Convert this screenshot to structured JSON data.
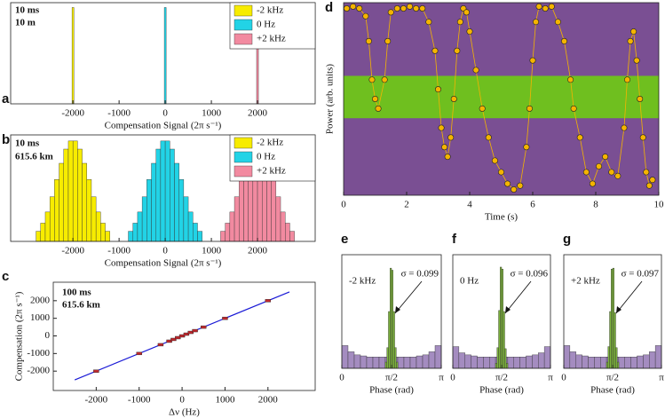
{
  "chart_data": [
    {
      "type": "histogram",
      "panel": "a",
      "annotations": [
        "10 ms",
        "10 m"
      ],
      "xlabel": "Compensation Signal (2π s⁻¹)",
      "xlim": [
        -3350,
        3250
      ],
      "ylim": [
        0,
        1.05
      ],
      "xticks": [
        -2000,
        -1000,
        0,
        1000,
        2000
      ],
      "series": [
        {
          "name": "-2 kHz",
          "color": "#f7ec00",
          "bins": [
            -2020,
            -1980
          ],
          "values": [
            1
          ]
        },
        {
          "name": "0 Hz",
          "color": "#22d3e6",
          "bins": [
            -20,
            20
          ],
          "values": [
            1
          ]
        },
        {
          "name": "+2 kHz",
          "color": "#f28aa0",
          "bins": [
            1980,
            2020
          ],
          "values": [
            1
          ]
        }
      ]
    },
    {
      "type": "histogram",
      "panel": "b",
      "annotations": [
        "10 ms",
        "615.6 km"
      ],
      "xlabel": "Compensation Signal (2π s⁻¹)",
      "xlim": [
        -3350,
        3250
      ],
      "ylim": [
        0,
        1.05
      ],
      "xticks": [
        -2000,
        -1000,
        0,
        1000,
        2000
      ],
      "series": [
        {
          "name": "-2 kHz",
          "color": "#f7ec00",
          "bins": [
            -2800,
            -2700,
            -2600,
            -2500,
            -2400,
            -2300,
            -2200,
            -2100,
            -2000,
            -1900,
            -1800,
            -1700,
            -1600,
            -1500,
            -1400,
            -1300,
            -1200
          ],
          "values": [
            0.1,
            0.18,
            0.29,
            0.44,
            0.61,
            0.77,
            0.91,
            0.99,
            0.99,
            0.91,
            0.77,
            0.61,
            0.44,
            0.29,
            0.18,
            0.1
          ]
        },
        {
          "name": "0 Hz",
          "color": "#22d3e6",
          "bins": [
            -800,
            -700,
            -600,
            -500,
            -400,
            -300,
            -200,
            -100,
            0,
            100,
            200,
            300,
            400,
            500,
            600,
            700,
            800
          ],
          "values": [
            0.1,
            0.18,
            0.29,
            0.44,
            0.61,
            0.77,
            0.91,
            0.99,
            0.99,
            0.91,
            0.77,
            0.61,
            0.44,
            0.29,
            0.18,
            0.1
          ]
        },
        {
          "name": "+2 kHz",
          "color": "#f28aa0",
          "bins": [
            1200,
            1300,
            1400,
            1500,
            1600,
            1700,
            1800,
            1900,
            2000,
            2100,
            2200,
            2300,
            2400,
            2500,
            2600,
            2700,
            2800
          ],
          "values": [
            0.1,
            0.18,
            0.29,
            0.44,
            0.61,
            0.77,
            0.91,
            0.99,
            0.99,
            0.91,
            0.77,
            0.61,
            0.44,
            0.29,
            0.18,
            0.1
          ]
        }
      ]
    },
    {
      "type": "line",
      "panel": "c",
      "annotations": [
        "100 ms",
        "615.6 km"
      ],
      "xlabel": "Δν (Hz)",
      "ylabel": "Compensation (2π s⁻¹)",
      "xlim": [
        -3000,
        3100
      ],
      "ylim": [
        -3100,
        3050
      ],
      "xticks": [
        -2000,
        -1000,
        0,
        1000,
        2000
      ],
      "yticks": [
        -2000,
        -1000,
        0,
        1000,
        2000
      ],
      "series": [
        {
          "color": "#1a1ad6",
          "style": "line",
          "x": [
            -2500,
            2500
          ],
          "values": [
            -2500,
            2500
          ]
        },
        {
          "color": "#c0282d",
          "style": "points",
          "x": [
            -2000,
            -1000,
            -500,
            -300,
            -200,
            -100,
            0,
            100,
            200,
            300,
            500,
            1000,
            2000
          ],
          "values": [
            -2000,
            -1000,
            -500,
            -300,
            -200,
            -100,
            0,
            100,
            200,
            300,
            500,
            1000,
            2000
          ]
        }
      ]
    },
    {
      "type": "line",
      "panel": "d",
      "xlabel": "Time  (s)",
      "ylabel": "Power (arb. units)",
      "xlim": [
        0,
        10
      ],
      "ylim": [
        0,
        1
      ],
      "xticks": [
        0,
        2,
        4,
        6,
        8,
        10
      ],
      "series": [
        {
          "color": "#f5b400",
          "style": "line+points",
          "x": [
            0.1,
            0.3,
            0.5,
            0.7,
            0.8,
            0.9,
            1.0,
            1.1,
            1.3,
            1.4,
            1.5,
            1.7,
            1.9,
            2.1,
            2.3,
            2.5,
            2.7,
            2.9,
            3.0,
            3.1,
            3.2,
            3.3,
            3.4,
            3.5,
            3.6,
            3.7,
            3.8,
            3.9,
            4.0,
            4.2,
            4.4,
            4.6,
            4.8,
            5.0,
            5.2,
            5.4,
            5.6,
            5.8,
            5.9,
            6.0,
            6.1,
            6.2,
            6.4,
            6.6,
            6.8,
            7.0,
            7.2,
            7.3,
            7.5,
            7.7,
            7.9,
            8.1,
            8.3,
            8.5,
            8.7,
            8.9,
            9.0,
            9.1,
            9.2,
            9.3,
            9.4,
            9.5,
            9.6,
            9.7,
            9.8
          ],
          "values": [
            0.97,
            0.98,
            0.97,
            0.93,
            0.8,
            0.6,
            0.5,
            0.45,
            0.6,
            0.8,
            0.95,
            0.97,
            0.97,
            0.98,
            0.97,
            0.97,
            0.9,
            0.75,
            0.55,
            0.35,
            0.25,
            0.2,
            0.3,
            0.5,
            0.75,
            0.9,
            0.97,
            0.95,
            0.85,
            0.65,
            0.45,
            0.3,
            0.18,
            0.12,
            0.06,
            0.03,
            0.05,
            0.25,
            0.45,
            0.7,
            0.9,
            0.98,
            0.97,
            0.98,
            0.9,
            0.8,
            0.6,
            0.45,
            0.3,
            0.12,
            0.06,
            0.15,
            0.2,
            0.12,
            0.1,
            0.35,
            0.6,
            0.8,
            0.85,
            0.7,
            0.5,
            0.3,
            0.12,
            0.05,
            0.08
          ]
        }
      ]
    },
    {
      "type": "histogram",
      "panel": "e",
      "annotations": [
        "-2 kHz",
        "σ = 0.099"
      ],
      "xlabel": "Phase (rad)",
      "xlim": [
        0,
        3.1416
      ],
      "ylim": [
        0,
        1.1
      ],
      "xticks": [
        {
          "value": 0,
          "label": "0"
        },
        {
          "value": 1.5708,
          "label": "π/2"
        },
        {
          "value": 3.1416,
          "label": "π"
        }
      ],
      "series": [
        {
          "color": "#a48cc0",
          "bins": [
            0,
            0.196,
            0.393,
            0.589,
            0.785,
            0.982,
            1.178,
            1.374,
            1.571,
            1.767,
            1.963,
            2.16,
            2.356,
            2.553,
            2.749,
            2.945,
            3.142
          ],
          "values": [
            0.22,
            0.16,
            0.13,
            0.12,
            0.11,
            0.11,
            0.11,
            0.11,
            0.11,
            0.11,
            0.11,
            0.11,
            0.12,
            0.13,
            0.16,
            0.22
          ]
        },
        {
          "color": "#7db43c",
          "bins": [
            1.371,
            1.421,
            1.471,
            1.521,
            1.571,
            1.621,
            1.671,
            1.721,
            1.771
          ],
          "values": [
            0.06,
            0.2,
            0.55,
            0.97,
            0.95,
            0.55,
            0.2,
            0.06
          ]
        }
      ]
    },
    {
      "type": "histogram",
      "panel": "f",
      "annotations": [
        "0 Hz",
        "σ = 0.096"
      ],
      "xlabel": "Phase (rad)",
      "xlim": [
        0,
        3.1416
      ],
      "ylim": [
        0,
        1.1
      ],
      "xticks": [
        {
          "value": 0,
          "label": "0"
        },
        {
          "value": 1.5708,
          "label": "π/2"
        },
        {
          "value": 3.1416,
          "label": "π"
        }
      ],
      "series": [
        {
          "color": "#a48cc0",
          "bins": [
            0,
            0.196,
            0.393,
            0.589,
            0.785,
            0.982,
            1.178,
            1.374,
            1.571,
            1.767,
            1.963,
            2.16,
            2.356,
            2.553,
            2.749,
            2.945,
            3.142
          ],
          "values": [
            0.21,
            0.15,
            0.13,
            0.12,
            0.11,
            0.11,
            0.11,
            0.11,
            0.11,
            0.11,
            0.11,
            0.11,
            0.12,
            0.13,
            0.15,
            0.21
          ]
        },
        {
          "color": "#7db43c",
          "bins": [
            1.371,
            1.421,
            1.471,
            1.521,
            1.571,
            1.621,
            1.671,
            1.721,
            1.771
          ],
          "values": [
            0.05,
            0.2,
            0.56,
            0.98,
            0.96,
            0.55,
            0.19,
            0.05
          ]
        }
      ]
    },
    {
      "type": "histogram",
      "panel": "g",
      "annotations": [
        "+2 kHz",
        "σ = 0.097"
      ],
      "xlabel": "Phase (rad)",
      "xlim": [
        0,
        3.1416
      ],
      "ylim": [
        0,
        1.1
      ],
      "xticks": [
        {
          "value": 0,
          "label": "0"
        },
        {
          "value": 1.5708,
          "label": "π/2"
        },
        {
          "value": 3.1416,
          "label": "π"
        }
      ],
      "series": [
        {
          "color": "#a48cc0",
          "bins": [
            0,
            0.196,
            0.393,
            0.589,
            0.785,
            0.982,
            1.178,
            1.374,
            1.571,
            1.767,
            1.963,
            2.16,
            2.356,
            2.553,
            2.749,
            2.945,
            3.142
          ],
          "values": [
            0.22,
            0.16,
            0.13,
            0.12,
            0.11,
            0.11,
            0.11,
            0.11,
            0.11,
            0.11,
            0.11,
            0.11,
            0.12,
            0.13,
            0.16,
            0.22
          ]
        },
        {
          "color": "#7db43c",
          "bins": [
            1.371,
            1.421,
            1.471,
            1.521,
            1.571,
            1.621,
            1.671,
            1.721,
            1.771
          ],
          "values": [
            0.06,
            0.21,
            0.55,
            0.96,
            0.97,
            0.54,
            0.2,
            0.06
          ]
        }
      ]
    }
  ]
}
